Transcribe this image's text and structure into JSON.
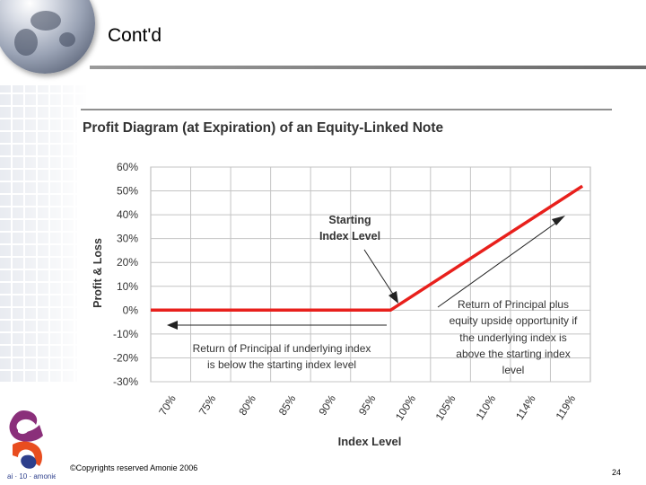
{
  "slide": {
    "title": "Cont'd",
    "footer": "©Copyrights reserved Amonie 2006",
    "page_number": "24",
    "logo_text": "ai · 10 · amonie"
  },
  "chart_data": {
    "type": "line",
    "title": "Profit Diagram (at Expiration) of an Equity-Linked Note",
    "xlabel": "Index Level",
    "ylabel": "Profit & Loss",
    "categories": [
      "70%",
      "75%",
      "80%",
      "85%",
      "90%",
      "95%",
      "100%",
      "105%",
      "110%",
      "114%",
      "119%"
    ],
    "y_ticks": [
      60,
      50,
      40,
      30,
      20,
      10,
      0,
      -10,
      -20,
      -30
    ],
    "y_tick_labels": [
      "60%",
      "50%",
      "40%",
      "30%",
      "20%",
      "10%",
      "0%",
      "-10%",
      "-20%",
      "-30%"
    ],
    "ylim": [
      -30,
      60
    ],
    "grid": true,
    "series": [
      {
        "name": "Profit",
        "color": "#e8201c",
        "points": [
          [
            70,
            0
          ],
          [
            100,
            0
          ],
          [
            124,
            52
          ]
        ]
      }
    ],
    "annotations": {
      "starting_index": [
        "Starting",
        "Index Level"
      ],
      "downside": [
        "Return of Principal if underlying index",
        "is below  the starting index level"
      ],
      "upside": [
        "Return of Principal plus",
        "equity upside opportunity if",
        "the underlying index is",
        "above the starting index",
        "level"
      ]
    }
  }
}
